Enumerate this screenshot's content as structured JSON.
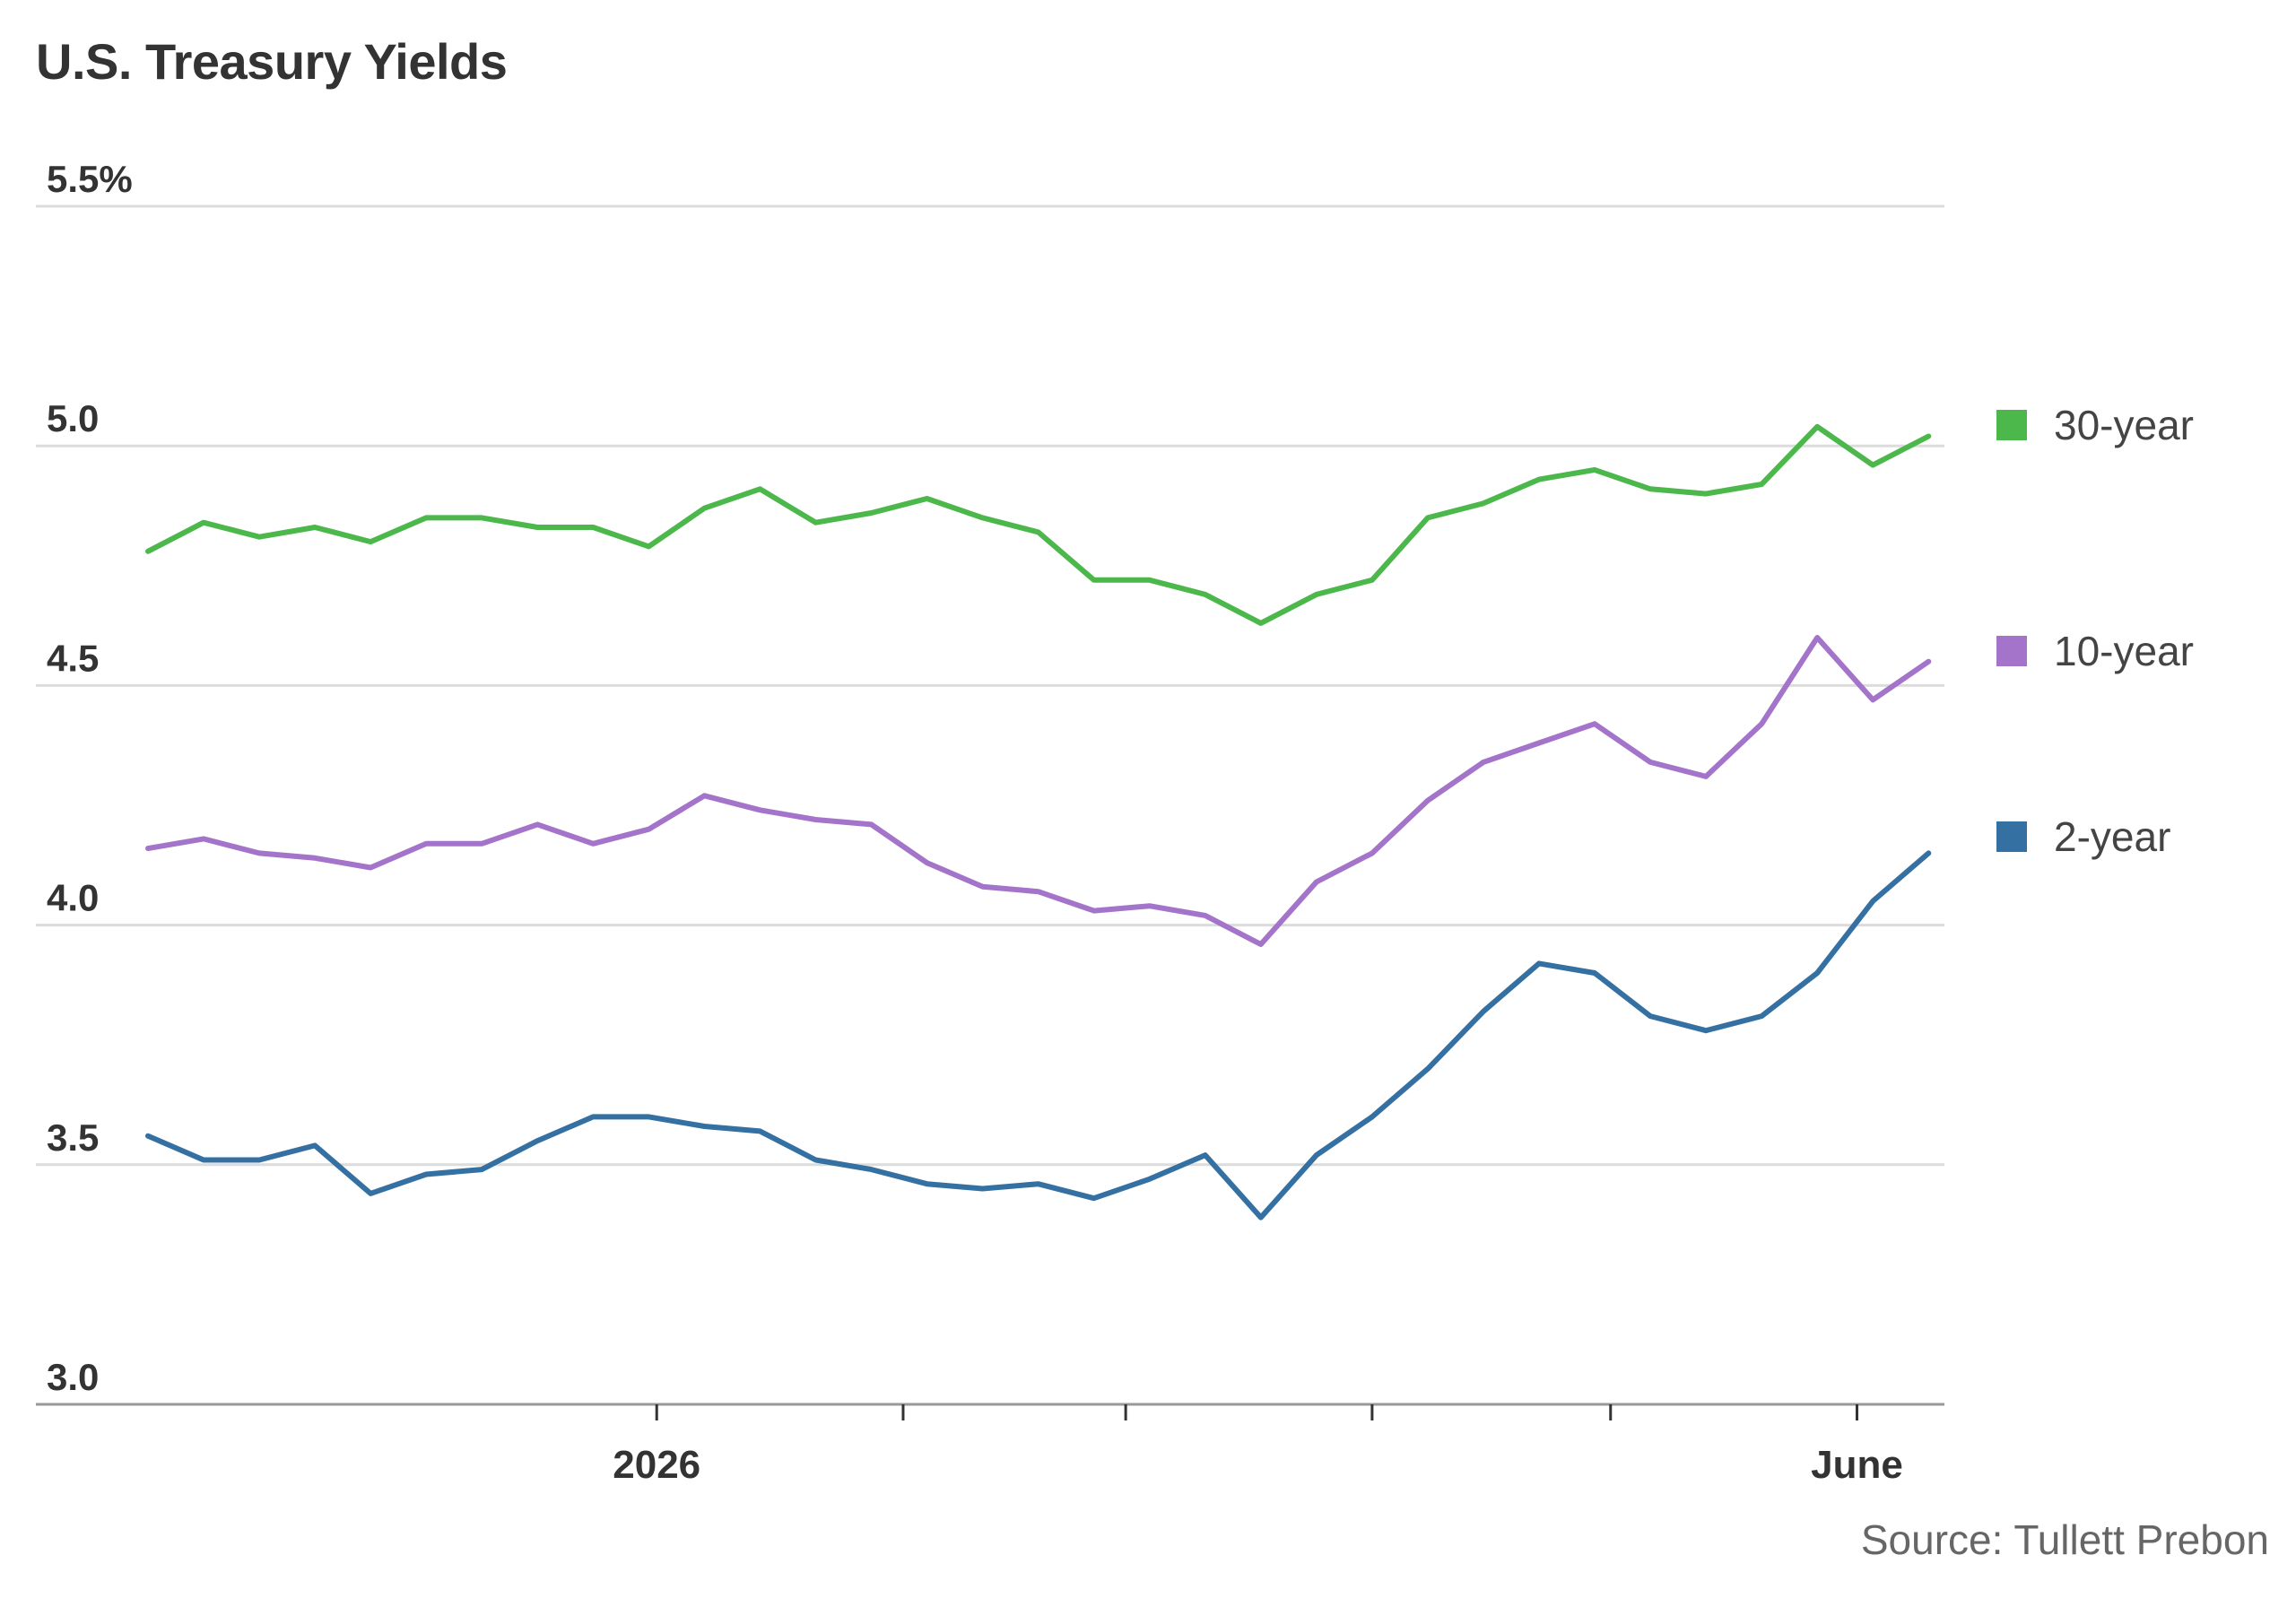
{
  "title": "U.S. Treasury Yields",
  "source": "Source: Tullett Prebon",
  "chart_data": {
    "type": "line",
    "y_unit_label": "5.5%",
    "ylim": [
      3.0,
      5.5
    ],
    "yticks": [
      {
        "value": 5.5,
        "label": "5.5%"
      },
      {
        "value": 5.0,
        "label": "5.0"
      },
      {
        "value": 4.5,
        "label": "4.5"
      },
      {
        "value": 4.0,
        "label": "4.0"
      },
      {
        "value": 3.5,
        "label": "3.5"
      },
      {
        "value": 3.0,
        "label": "3.0"
      }
    ],
    "grid": true,
    "xrange": [
      "2025-10-29",
      "2026-06-12"
    ],
    "xticks": [
      {
        "date": "2026-01-01",
        "label": "2026"
      },
      {
        "date": "2026-02-01",
        "label": ""
      },
      {
        "date": "2026-03-01",
        "label": ""
      },
      {
        "date": "2026-04-01",
        "label": ""
      },
      {
        "date": "2026-05-01",
        "label": ""
      },
      {
        "date": "2026-06-01",
        "label": "June"
      }
    ],
    "legend_position": "right",
    "series": [
      {
        "name": "30-year",
        "color": "#4cb84c",
        "points": [
          [
            "2025-10-29",
            4.78
          ],
          [
            "2025-11-05",
            4.84
          ],
          [
            "2025-11-12",
            4.81
          ],
          [
            "2025-11-19",
            4.83
          ],
          [
            "2025-11-26",
            4.8
          ],
          [
            "2025-12-03",
            4.85
          ],
          [
            "2025-12-10",
            4.85
          ],
          [
            "2025-12-17",
            4.83
          ],
          [
            "2025-12-24",
            4.83
          ],
          [
            "2025-12-31",
            4.79
          ],
          [
            "2026-01-07",
            4.87
          ],
          [
            "2026-01-14",
            4.91
          ],
          [
            "2026-01-21",
            4.84
          ],
          [
            "2026-01-28",
            4.86
          ],
          [
            "2026-02-04",
            4.89
          ],
          [
            "2026-02-11",
            4.85
          ],
          [
            "2026-02-18",
            4.82
          ],
          [
            "2026-02-25",
            4.72
          ],
          [
            "2026-03-04",
            4.72
          ],
          [
            "2026-03-11",
            4.69
          ],
          [
            "2026-03-18",
            4.63
          ],
          [
            "2026-03-25",
            4.69
          ],
          [
            "2026-04-01",
            4.72
          ],
          [
            "2026-04-08",
            4.85
          ],
          [
            "2026-04-15",
            4.88
          ],
          [
            "2026-04-22",
            4.93
          ],
          [
            "2026-04-29",
            4.95
          ],
          [
            "2026-05-06",
            4.91
          ],
          [
            "2026-05-13",
            4.9
          ],
          [
            "2026-05-20",
            4.92
          ],
          [
            "2026-05-27",
            5.04
          ],
          [
            "2026-06-03",
            4.96
          ],
          [
            "2026-06-10",
            5.02
          ]
        ]
      },
      {
        "name": "10-year",
        "color": "#a374c9",
        "points": [
          [
            "2025-10-29",
            4.16
          ],
          [
            "2025-11-05",
            4.18
          ],
          [
            "2025-11-12",
            4.15
          ],
          [
            "2025-11-19",
            4.14
          ],
          [
            "2025-11-26",
            4.12
          ],
          [
            "2025-12-03",
            4.17
          ],
          [
            "2025-12-10",
            4.17
          ],
          [
            "2025-12-17",
            4.21
          ],
          [
            "2025-12-24",
            4.17
          ],
          [
            "2025-12-31",
            4.2
          ],
          [
            "2026-01-07",
            4.27
          ],
          [
            "2026-01-14",
            4.24
          ],
          [
            "2026-01-21",
            4.22
          ],
          [
            "2026-01-28",
            4.21
          ],
          [
            "2026-02-04",
            4.13
          ],
          [
            "2026-02-11",
            4.08
          ],
          [
            "2026-02-18",
            4.07
          ],
          [
            "2026-02-25",
            4.03
          ],
          [
            "2026-03-04",
            4.04
          ],
          [
            "2026-03-11",
            4.02
          ],
          [
            "2026-03-18",
            3.96
          ],
          [
            "2026-03-25",
            4.09
          ],
          [
            "2026-04-01",
            4.15
          ],
          [
            "2026-04-08",
            4.26
          ],
          [
            "2026-04-15",
            4.34
          ],
          [
            "2026-04-22",
            4.38
          ],
          [
            "2026-04-29",
            4.42
          ],
          [
            "2026-05-06",
            4.34
          ],
          [
            "2026-05-13",
            4.31
          ],
          [
            "2026-05-20",
            4.42
          ],
          [
            "2026-05-27",
            4.6
          ],
          [
            "2026-06-03",
            4.47
          ],
          [
            "2026-06-10",
            4.55
          ]
        ]
      },
      {
        "name": "2-year",
        "color": "#3570a3",
        "points": [
          [
            "2025-10-29",
            3.56
          ],
          [
            "2025-11-05",
            3.51
          ],
          [
            "2025-11-12",
            3.51
          ],
          [
            "2025-11-19",
            3.54
          ],
          [
            "2025-11-26",
            3.44
          ],
          [
            "2025-12-03",
            3.48
          ],
          [
            "2025-12-10",
            3.49
          ],
          [
            "2025-12-17",
            3.55
          ],
          [
            "2025-12-24",
            3.6
          ],
          [
            "2025-12-31",
            3.6
          ],
          [
            "2026-01-07",
            3.58
          ],
          [
            "2026-01-14",
            3.57
          ],
          [
            "2026-01-21",
            3.51
          ],
          [
            "2026-01-28",
            3.49
          ],
          [
            "2026-02-04",
            3.46
          ],
          [
            "2026-02-11",
            3.45
          ],
          [
            "2026-02-18",
            3.46
          ],
          [
            "2026-02-25",
            3.43
          ],
          [
            "2026-03-04",
            3.47
          ],
          [
            "2026-03-11",
            3.52
          ],
          [
            "2026-03-18",
            3.39
          ],
          [
            "2026-03-25",
            3.52
          ],
          [
            "2026-04-01",
            3.6
          ],
          [
            "2026-04-08",
            3.7
          ],
          [
            "2026-04-15",
            3.82
          ],
          [
            "2026-04-22",
            3.92
          ],
          [
            "2026-04-29",
            3.9
          ],
          [
            "2026-05-06",
            3.81
          ],
          [
            "2026-05-13",
            3.78
          ],
          [
            "2026-05-20",
            3.81
          ],
          [
            "2026-05-27",
            3.9
          ],
          [
            "2026-06-03",
            4.05
          ],
          [
            "2026-06-10",
            4.15
          ]
        ]
      }
    ]
  }
}
